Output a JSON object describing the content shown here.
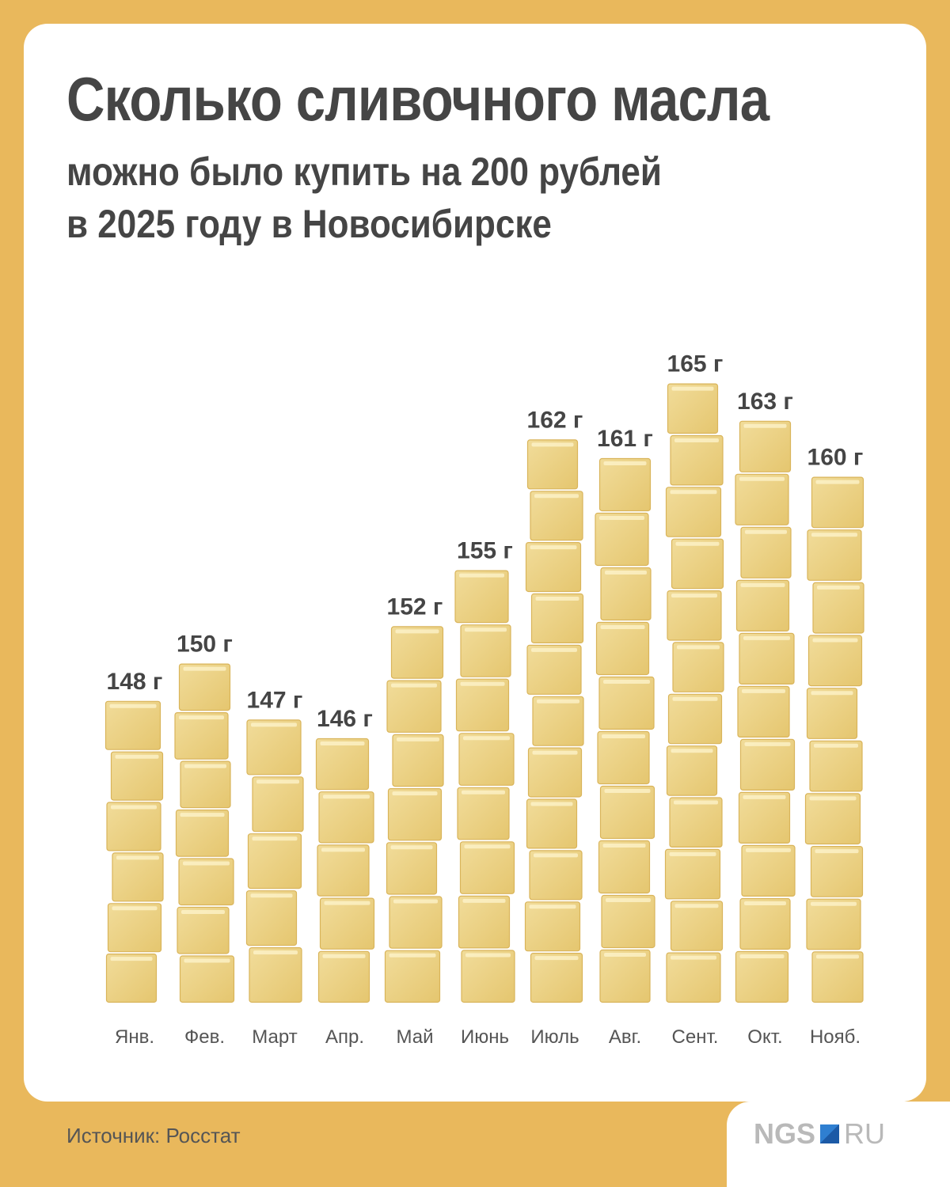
{
  "header": {
    "title": "Сколько сливочного масла",
    "subtitle": "можно было купить на 200 рублей\nв 2025 году в Новосибирске"
  },
  "chart_data": {
    "type": "bar",
    "title": "Сколько сливочного масла можно было купить на 200 рублей в 2025 году в Новосибирске",
    "categories": [
      "Янв.",
      "Фев.",
      "Март",
      "Апр.",
      "Май",
      "Июнь",
      "Июль",
      "Авг.",
      "Сент.",
      "Окт.",
      "Нояб."
    ],
    "values": [
      148,
      150,
      147,
      146,
      152,
      155,
      162,
      161,
      165,
      163,
      160
    ],
    "value_labels": [
      "148 г",
      "150 г",
      "147 г",
      "146 г",
      "152 г",
      "155 г",
      "162 г",
      "161 г",
      "165 г",
      "163 г",
      "160 г"
    ],
    "unit": "г",
    "xlabel": "",
    "ylabel": "",
    "grid": false,
    "bar_style": "stacked butter cubes",
    "colors": {
      "butter": "#f1dc9a",
      "butter_dark": "#e5c66f",
      "butter_edge": "#d9b45a"
    }
  },
  "footer": {
    "source": "Источник: Росстат",
    "logo": {
      "left": "NGS",
      "right": "RU"
    }
  },
  "colors": {
    "background": "#e9b85c",
    "card": "#ffffff",
    "text": "#454545"
  }
}
